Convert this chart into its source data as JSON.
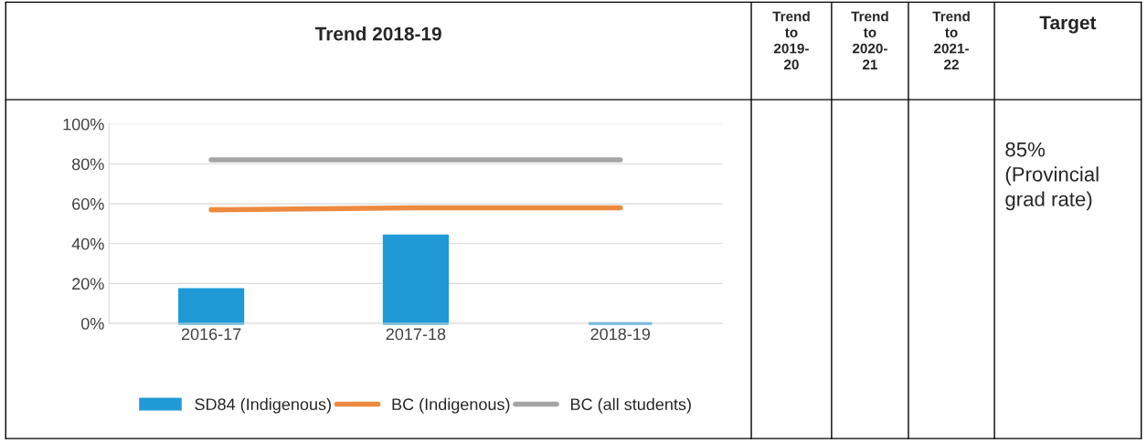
{
  "chart_data": {
    "type": "bar",
    "title": "Trend 2018-19",
    "categories": [
      "2016-17",
      "2017-18",
      "2018-19"
    ],
    "series": [
      {
        "name": "SD84 (Indigenous)",
        "color": "#1f9ad6",
        "values": [
          17,
          44,
          0
        ]
      },
      {
        "name": "BC (Indigenous)",
        "type": "line",
        "color": "#ed8a3f",
        "values": [
          57,
          58,
          58
        ]
      },
      {
        "name": "BC (all students)",
        "type": "line",
        "color": "#a5a5a5",
        "values": [
          82,
          82,
          82
        ]
      }
    ],
    "ylim": [
      0,
      100
    ],
    "yticks": [
      {
        "value": 0,
        "label": "0%"
      },
      {
        "value": 20,
        "label": "20%"
      },
      {
        "value": 40,
        "label": "40%"
      },
      {
        "value": 60,
        "label": "60%"
      },
      {
        "value": 80,
        "label": "80%"
      },
      {
        "value": 100,
        "label": "100%"
      }
    ],
    "grid": "y",
    "legend": "bottom",
    "marker": "none",
    "line_style": "solid",
    "annotations": [
      "Trend\nto\n2019-\n20",
      "Trend\nto\n2020-\n21",
      "Trend\nto\n2021-\n22",
      "Target",
      "85%\n(Provincial\ngrad rate)"
    ]
  }
}
